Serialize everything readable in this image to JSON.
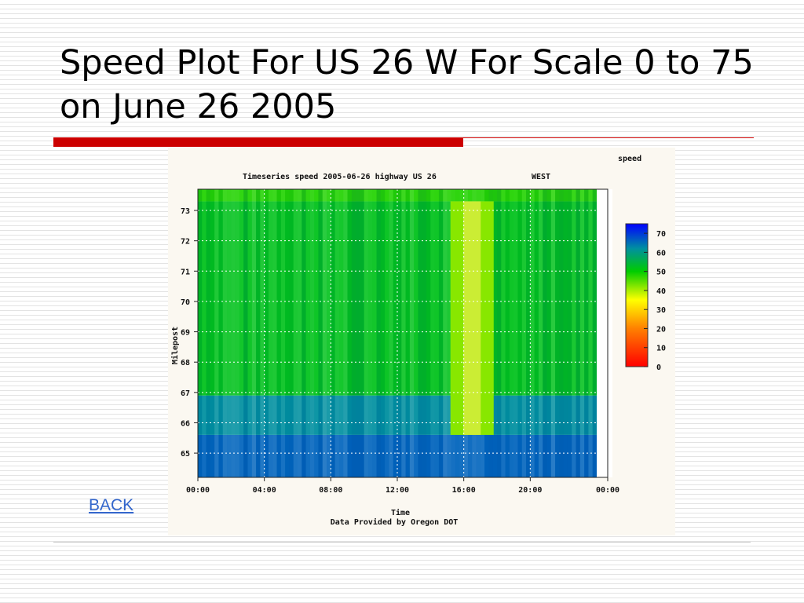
{
  "slide": {
    "title": "Speed Plot For US 26 W For Scale 0 to 75 on June 26 2005",
    "back_link": "BACK"
  },
  "colors": {
    "accent_red": "#cc0000",
    "link_blue": "#3366cc"
  },
  "chart_data": {
    "type": "heatmap",
    "title": "Timeseries speed 2005-06-26 highway US 26",
    "direction": "WEST",
    "colorbar_title": "speed",
    "xlabel": "Time",
    "caption": "Data Provided by Oregon DOT",
    "ylabel": "Milepost",
    "x_ticks": [
      "00:00",
      "04:00",
      "08:00",
      "12:00",
      "16:00",
      "20:00",
      "00:00"
    ],
    "x_range_hours": [
      0,
      24
    ],
    "y_ticks": [
      65,
      66,
      67,
      68,
      69,
      70,
      71,
      72,
      73
    ],
    "y_range": [
      64.2,
      73.7
    ],
    "color_scale": {
      "min": 0,
      "max": 75,
      "ticks": [
        0,
        10,
        20,
        30,
        40,
        50,
        60,
        70
      ],
      "stops": [
        {
          "value": 0,
          "color": "#ff0000"
        },
        {
          "value": 20,
          "color": "#ff8000"
        },
        {
          "value": 35,
          "color": "#ffff00"
        },
        {
          "value": 50,
          "color": "#00cc00"
        },
        {
          "value": 62,
          "color": "#0090a0"
        },
        {
          "value": 75,
          "color": "#0000ff"
        }
      ]
    },
    "grid": true,
    "rows": [
      {
        "milepost_range": [
          64.2,
          65.6
        ],
        "time_range": [
          0,
          24
        ],
        "speed": 66
      },
      {
        "milepost_range": [
          65.6,
          66.9
        ],
        "time_range": [
          0,
          24
        ],
        "speed": 62
      },
      {
        "milepost_range": [
          66.9,
          73.3
        ],
        "time_range": [
          0,
          24
        ],
        "speed": 52
      },
      {
        "milepost_range": [
          73.3,
          73.7
        ],
        "time_range": [
          0,
          24
        ],
        "speed": 48
      }
    ],
    "slowdown": {
      "time_range": [
        15.2,
        17.8
      ],
      "milepost_range": [
        65.6,
        73.3
      ],
      "speed": 42
    }
  }
}
